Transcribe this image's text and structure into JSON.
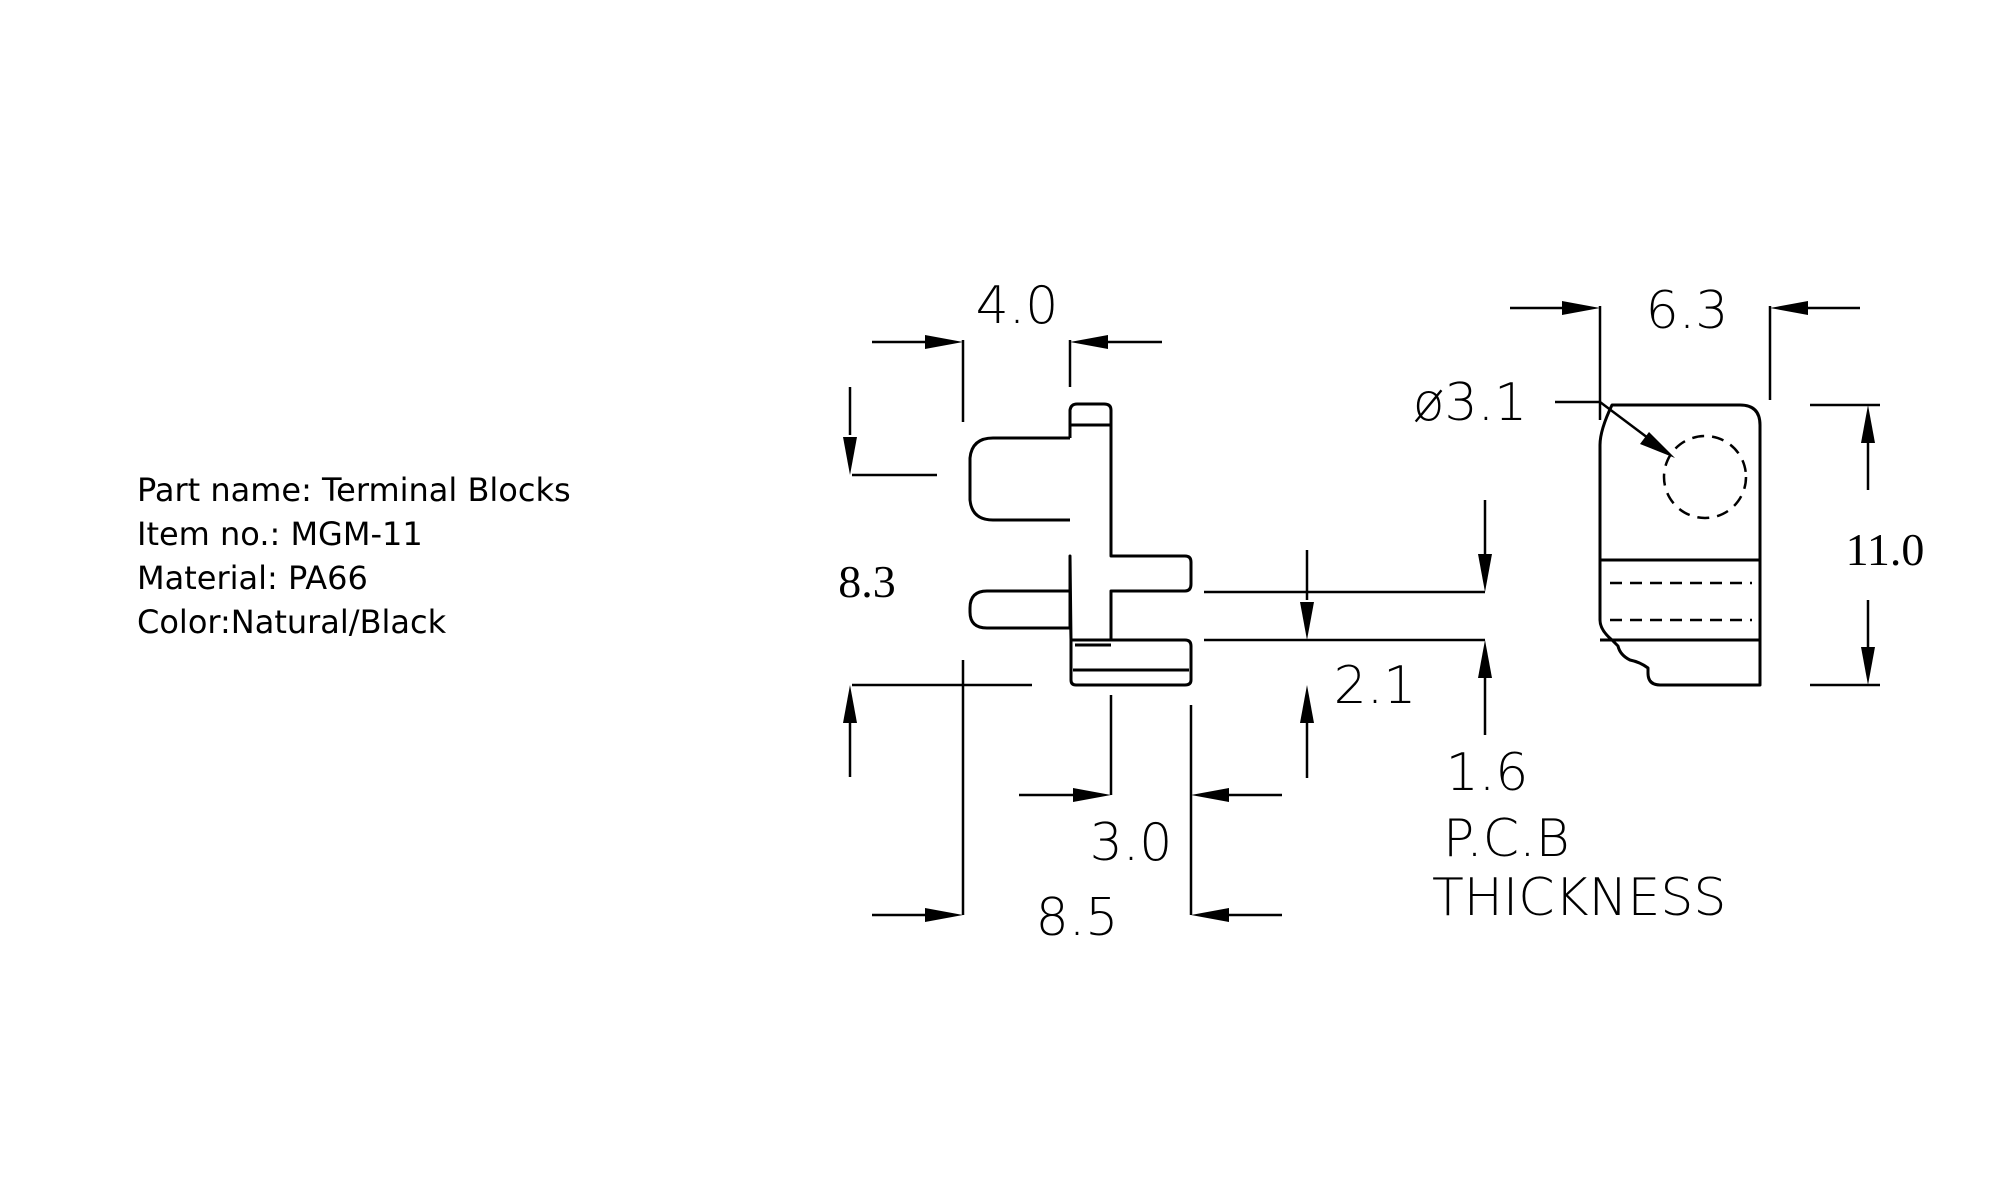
{
  "specs": {
    "part_name": "Part name: Terminal Blocks",
    "item_no": "Item no.: MGM-11",
    "material": "Material: PA66",
    "color": "Color:Natural/Black"
  },
  "dimensions": {
    "d_4_0": "4.0",
    "d_6_3": "6.3",
    "d_hole": "ø3.1",
    "d_8_3": "8.3",
    "d_11_0": "11.0",
    "d_2_1": "2.1",
    "d_1_6": "1.6",
    "d_3_0": "3.0",
    "d_8_5": "8.5"
  },
  "notes": {
    "pcb_line1": "P.C.B",
    "pcb_line2": "THICKNESS"
  }
}
